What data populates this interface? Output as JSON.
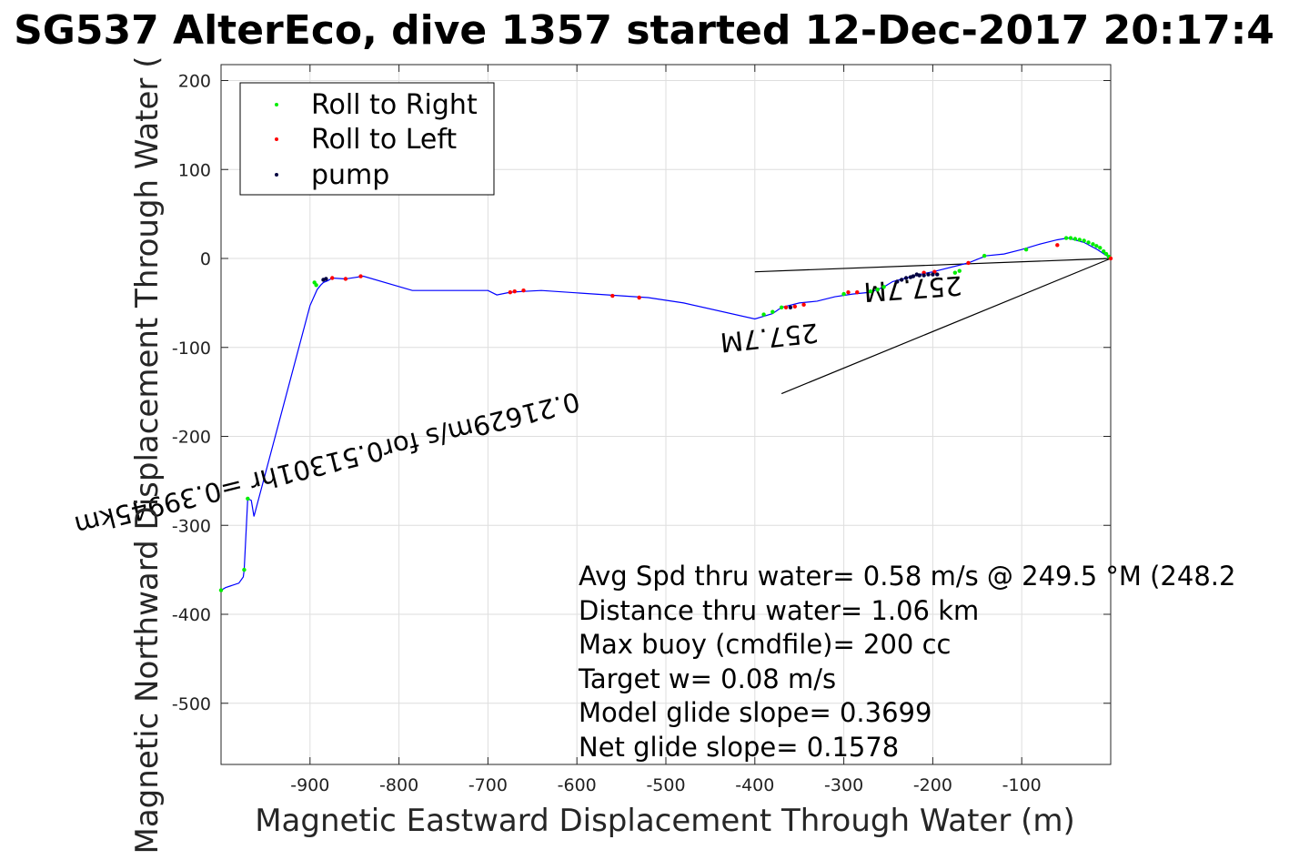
{
  "chart_data": {
    "type": "line",
    "title": "SG537 AlterEco, dive 1357 started 12-Dec-2017 20:17:4",
    "xlabel": "Magnetic Eastward Displacement Through Water (m)",
    "ylabel": "Magnetic Northward Displacement Through Water (",
    "xlim": [
      -1000,
      0
    ],
    "ylim": [
      -570,
      218
    ],
    "xticks": [
      -900,
      -800,
      -700,
      -600,
      -500,
      -400,
      -300,
      -200,
      -100
    ],
    "yticks": [
      200,
      100,
      0,
      -100,
      -200,
      -300,
      -400,
      -500
    ],
    "grid": true,
    "legend_position": "top-left",
    "legend": [
      {
        "label": "Roll to Right",
        "color": "#00ee00"
      },
      {
        "label": "Roll to Left",
        "color": "#ff0000"
      },
      {
        "label": "pump",
        "color": "#000040"
      }
    ],
    "track": {
      "color": "#0000ff",
      "x": [
        0,
        -15,
        -30,
        -48,
        -60,
        -80,
        -100,
        -120,
        -140,
        -160,
        -200,
        -215,
        -230,
        -245,
        -255,
        -270,
        -290,
        -310,
        -330,
        -350,
        -370,
        -380,
        -400,
        -480,
        -520,
        -580,
        -640,
        -660,
        -675,
        -690,
        -700,
        -785,
        -840,
        -860,
        -875,
        -880,
        -885,
        -888,
        -892,
        -900,
        -963,
        -966,
        -970,
        -974,
        -975,
        -980,
        -995,
        -1000
      ],
      "y": [
        0,
        10,
        18,
        23,
        21,
        16,
        10,
        5,
        3,
        -5,
        -15,
        -18,
        -22,
        -26,
        -32,
        -38,
        -40,
        -43,
        -48,
        -50,
        -55,
        -62,
        -68,
        -50,
        -44,
        -40,
        -36,
        -37,
        -38,
        -41,
        -36,
        -36,
        -20,
        -23,
        -22,
        -25,
        -27,
        -30,
        -35,
        -53,
        -290,
        -272,
        -270,
        -350,
        -358,
        -365,
        -370,
        -373
      ]
    },
    "roll_right": {
      "x": [
        -2,
        -5,
        -8,
        -12,
        -16,
        -20,
        -25,
        -30,
        -35,
        -40,
        -45,
        -50,
        -95,
        -142,
        -170,
        -175,
        -255,
        -262,
        -270,
        -300,
        -370,
        -380,
        -390,
        -893,
        -895,
        -970,
        -974,
        -1000
      ],
      "y": [
        2,
        5,
        8,
        12,
        14,
        16,
        18,
        20,
        21,
        22,
        23,
        23,
        10,
        3,
        -14,
        -16,
        -32,
        -35,
        -37,
        -40,
        -55,
        -60,
        -63,
        -30,
        -27,
        -270,
        -350,
        -373
      ]
    },
    "roll_left": {
      "x": [
        0,
        -60,
        -160,
        -198,
        -210,
        -285,
        -295,
        -345,
        -355,
        -365,
        -530,
        -560,
        -660,
        -670,
        -675,
        -843,
        -860,
        -875
      ],
      "y": [
        0,
        15,
        -5,
        -15,
        -16,
        -38,
        -38,
        -52,
        -54,
        -55,
        -44,
        -42,
        -36,
        -37,
        -38,
        -20,
        -23,
        -22
      ],
      "color": "#ff0000"
    },
    "pump": {
      "x": [
        -195,
        -200,
        -205,
        -210,
        -215,
        -218,
        -222,
        -225,
        -230,
        -235,
        -240,
        -360,
        -882,
        -885
      ],
      "y": [
        -18,
        -18,
        -18,
        -19,
        -19,
        -18,
        -20,
        -21,
        -22,
        -24,
        -26,
        -55,
        -23,
        -24
      ],
      "color": "#000040"
    },
    "glide_lines": [
      {
        "x": [
          0,
          -400
        ],
        "y": [
          0,
          -15
        ]
      },
      {
        "x": [
          0,
          -370
        ],
        "y": [
          0,
          -152
        ]
      }
    ],
    "annotations": [
      {
        "text": "0.21629m/s for0.51301hr =0.39945km",
        "x": -600,
        "y": -150,
        "rotation_deg": 166
      },
      {
        "text": "257.7M",
        "x": -168,
        "y": -20,
        "rotation_deg": 176
      },
      {
        "text": "257.7M",
        "x": -330,
        "y": -73,
        "rotation_deg": 174
      }
    ],
    "stats": [
      "Avg Spd thru water=  0.58 m/s @ 249.5 °M (248.2",
      "Distance thru water=  1.06 km",
      "Max buoy (cmdfile)= 200 cc",
      "Target w= 0.08 m/s",
      "Model glide slope= 0.3699",
      "Net glide slope= 0.1578"
    ]
  }
}
